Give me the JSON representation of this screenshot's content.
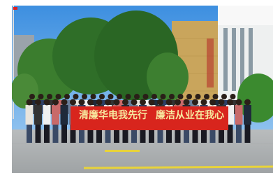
{
  "banner": {
    "left": "清廉华电我先行",
    "right": "廉洁从业在我心"
  }
}
